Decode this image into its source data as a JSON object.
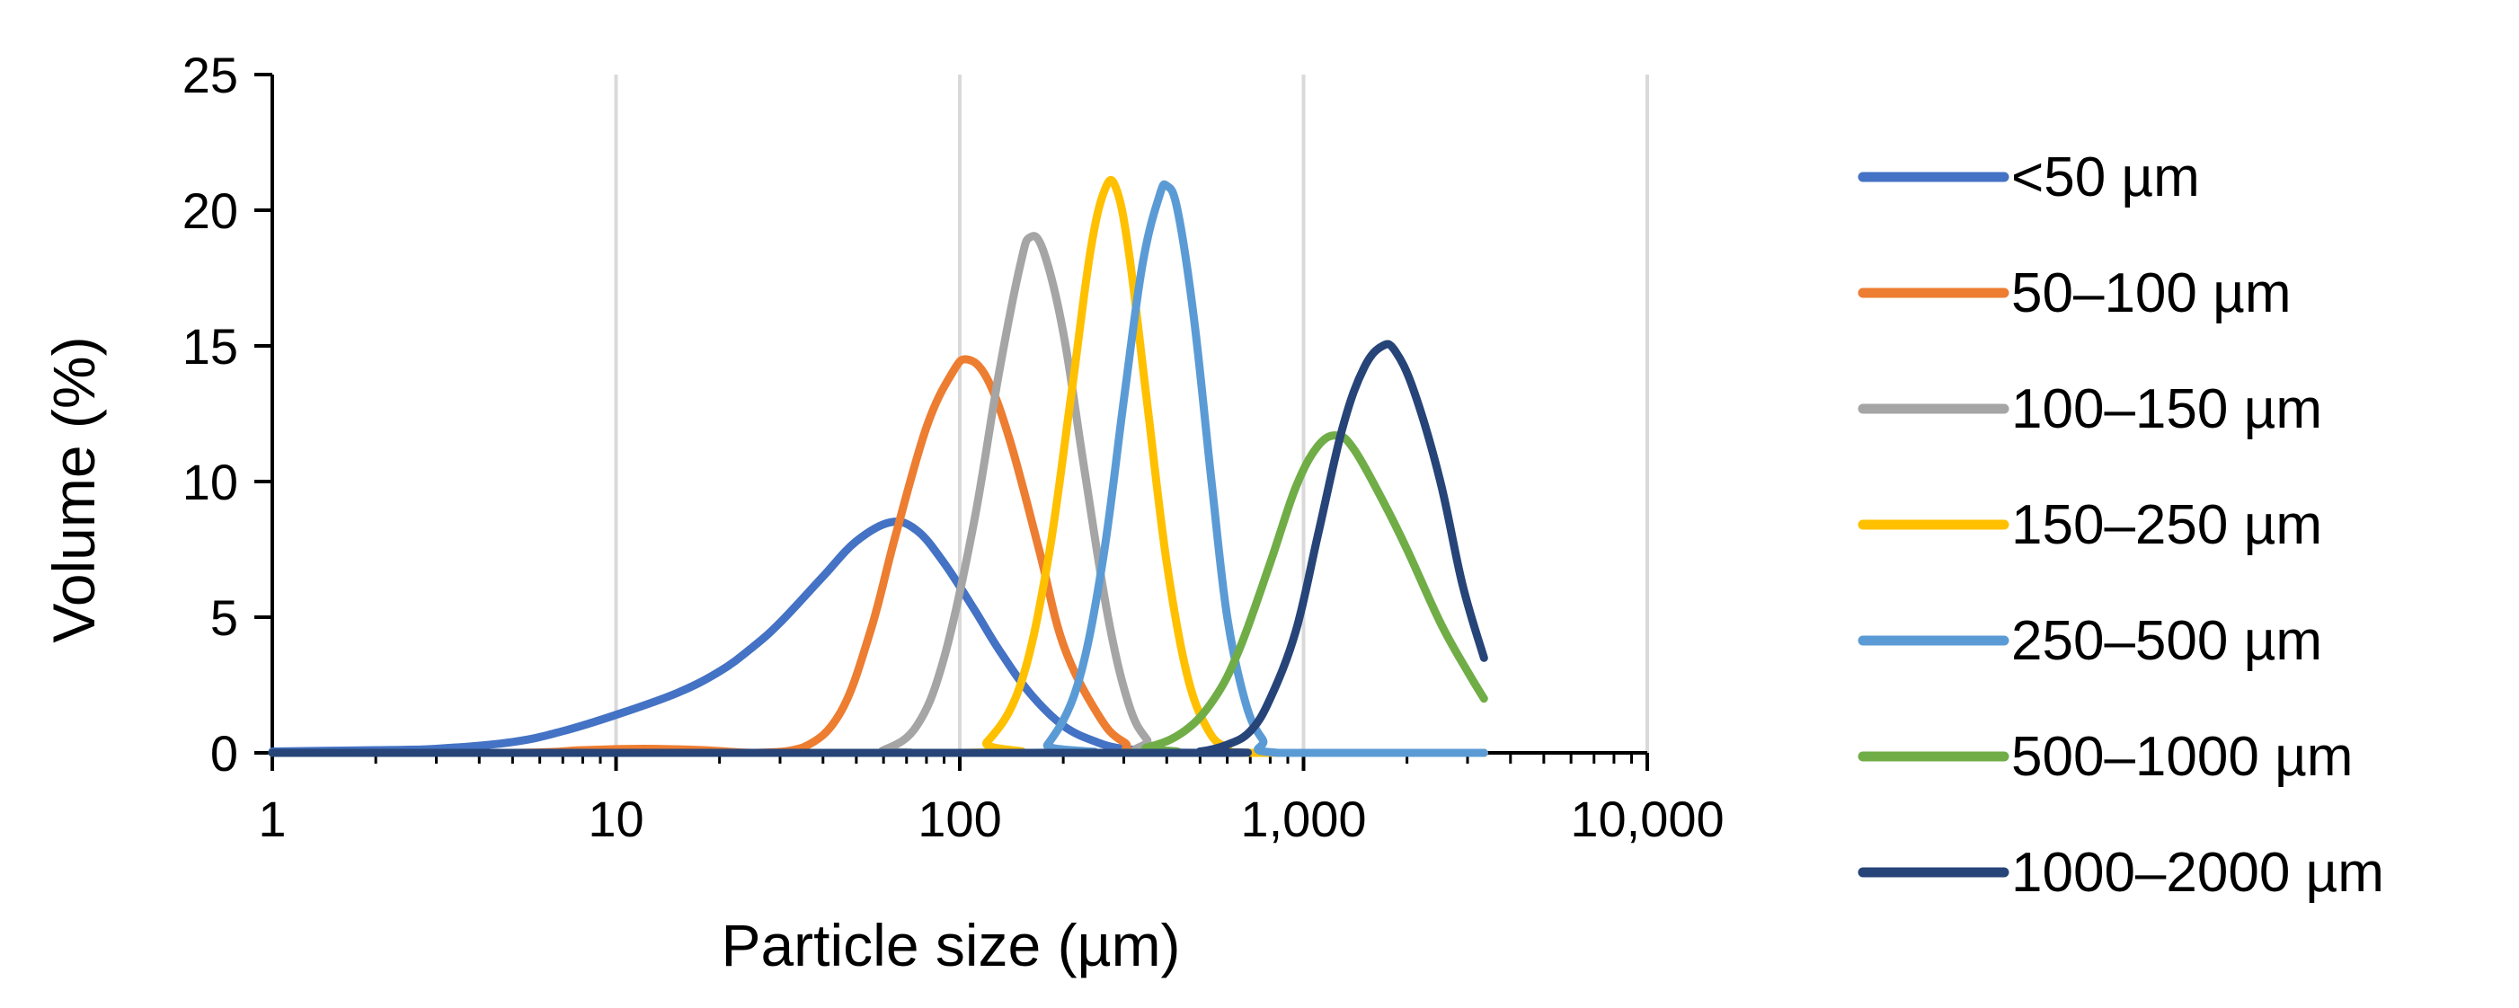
{
  "chart_data": {
    "type": "line",
    "title": "",
    "xlabel": "Particle size (µm)",
    "ylabel": "Volume (%)",
    "x_scale": "log",
    "xlim": [
      1,
      10000
    ],
    "ylim": [
      0,
      25
    ],
    "x_ticks": [
      1,
      10,
      100,
      1000,
      10000
    ],
    "x_tick_labels": [
      "1",
      "10",
      "100",
      "1,000",
      "10,000"
    ],
    "y_ticks": [
      0,
      5,
      10,
      15,
      20,
      25
    ],
    "y_tick_labels": [
      "0",
      "5",
      "10",
      "15",
      "20",
      "25"
    ],
    "grid": "vertical-major",
    "legend_position": "right",
    "series": [
      {
        "name": "<50 µm",
        "color": "#4472C4",
        "points": [
          [
            1,
            0.05
          ],
          [
            2,
            0.1
          ],
          [
            3,
            0.15
          ],
          [
            5,
            0.4
          ],
          [
            7,
            0.8
          ],
          [
            10,
            1.4
          ],
          [
            15,
            2.2
          ],
          [
            20,
            3.0
          ],
          [
            25,
            3.9
          ],
          [
            30,
            4.8
          ],
          [
            40,
            6.5
          ],
          [
            50,
            7.8
          ],
          [
            63,
            8.5
          ],
          [
            75,
            8.2
          ],
          [
            90,
            7.0
          ],
          [
            110,
            5.3
          ],
          [
            130,
            3.8
          ],
          [
            160,
            2.2
          ],
          [
            200,
            1.0
          ],
          [
            250,
            0.4
          ],
          [
            300,
            0.15
          ],
          [
            400,
            0.05
          ],
          [
            500,
            0.0
          ],
          [
            3350,
            0.0
          ]
        ]
      },
      {
        "name": "50–100 µm",
        "color": "#ED7D31",
        "points": [
          [
            1,
            0.0
          ],
          [
            5,
            0.0
          ],
          [
            8,
            0.1
          ],
          [
            12,
            0.15
          ],
          [
            18,
            0.1
          ],
          [
            25,
            0.0
          ],
          [
            35,
            0.2
          ],
          [
            45,
            1.5
          ],
          [
            55,
            4.5
          ],
          [
            65,
            8.0
          ],
          [
            80,
            12.0
          ],
          [
            95,
            14.0
          ],
          [
            105,
            14.5
          ],
          [
            120,
            13.8
          ],
          [
            140,
            11.5
          ],
          [
            170,
            7.5
          ],
          [
            200,
            4.0
          ],
          [
            250,
            1.5
          ],
          [
            300,
            0.4
          ],
          [
            400,
            0.0
          ],
          [
            3350,
            0.0
          ]
        ]
      },
      {
        "name": "100–150 µm",
        "color": "#A5A5A5",
        "points": [
          [
            1,
            0.0
          ],
          [
            50,
            0.0
          ],
          [
            60,
            0.1
          ],
          [
            75,
            1.0
          ],
          [
            90,
            3.5
          ],
          [
            110,
            8.5
          ],
          [
            130,
            14.0
          ],
          [
            150,
            18.0
          ],
          [
            160,
            19.0
          ],
          [
            175,
            18.5
          ],
          [
            200,
            15.5
          ],
          [
            230,
            10.5
          ],
          [
            270,
            5.0
          ],
          [
            310,
            1.8
          ],
          [
            350,
            0.5
          ],
          [
            400,
            0.0
          ],
          [
            3350,
            0.0
          ]
        ]
      },
      {
        "name": "150–250 µm",
        "color": "#FFC000",
        "points": [
          [
            1,
            0.0
          ],
          [
            100,
            0.0
          ],
          [
            120,
            0.4
          ],
          [
            150,
            2.5
          ],
          [
            180,
            7.0
          ],
          [
            210,
            13.0
          ],
          [
            240,
            18.5
          ],
          [
            265,
            20.8
          ],
          [
            285,
            20.8
          ],
          [
            310,
            18.5
          ],
          [
            350,
            13.0
          ],
          [
            400,
            7.0
          ],
          [
            460,
            2.8
          ],
          [
            530,
            0.8
          ],
          [
            600,
            0.2
          ],
          [
            700,
            0.0
          ],
          [
            3350,
            0.0
          ]
        ]
      },
      {
        "name": "250–500 µm",
        "color": "#5B9BD5",
        "points": [
          [
            1,
            0.0
          ],
          [
            160,
            0.0
          ],
          [
            180,
            0.3
          ],
          [
            220,
            2.5
          ],
          [
            260,
            7.0
          ],
          [
            300,
            13.0
          ],
          [
            340,
            18.0
          ],
          [
            380,
            20.5
          ],
          [
            400,
            20.9
          ],
          [
            430,
            20.0
          ],
          [
            480,
            16.0
          ],
          [
            540,
            10.0
          ],
          [
            600,
            5.0
          ],
          [
            680,
            1.8
          ],
          [
            760,
            0.5
          ],
          [
            850,
            0.0
          ],
          [
            3350,
            0.0
          ]
        ]
      },
      {
        "name": "500–1000 µm",
        "color": "#70AD47",
        "points": [
          [
            1,
            0.0
          ],
          [
            250,
            0.0
          ],
          [
            350,
            0.2
          ],
          [
            450,
            0.8
          ],
          [
            550,
            2.0
          ],
          [
            650,
            3.8
          ],
          [
            800,
            7.0
          ],
          [
            950,
            9.8
          ],
          [
            1100,
            11.3
          ],
          [
            1250,
            11.7
          ],
          [
            1400,
            11.2
          ],
          [
            1700,
            9.3
          ],
          [
            2000,
            7.5
          ],
          [
            2500,
            4.8
          ],
          [
            3000,
            3.0
          ],
          [
            3350,
            2.0
          ]
        ]
      },
      {
        "name": "1000–2000 µm",
        "color": "#264478",
        "points": [
          [
            1,
            0.0
          ],
          [
            400,
            0.0
          ],
          [
            500,
            0.05
          ],
          [
            600,
            0.3
          ],
          [
            700,
            0.8
          ],
          [
            800,
            2.0
          ],
          [
            950,
            4.5
          ],
          [
            1100,
            8.0
          ],
          [
            1300,
            12.0
          ],
          [
            1500,
            14.2
          ],
          [
            1700,
            15.0
          ],
          [
            1850,
            14.8
          ],
          [
            2100,
            13.3
          ],
          [
            2500,
            10.0
          ],
          [
            2900,
            6.2
          ],
          [
            3350,
            3.5
          ]
        ]
      }
    ]
  }
}
